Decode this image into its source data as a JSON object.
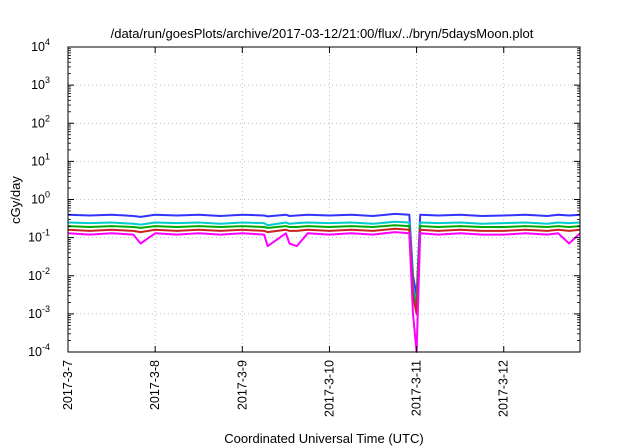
{
  "chart_data": {
    "type": "line",
    "title": "/data/run/goesPlots/archive/2017-03-12/21:00/flux/../bryn/5daysMoon.plot",
    "xlabel": "Coordinated Universal Time (UTC)",
    "ylabel": "cGy/day",
    "y_scale": "log",
    "ylim": [
      0.0001,
      10000
    ],
    "xlim": [
      "2017-03-07 00:00",
      "2017-03-12 21:00"
    ],
    "grid": true,
    "legend": "none",
    "y_ticks": [
      {
        "base": "10",
        "exp": "-4"
      },
      {
        "base": "10",
        "exp": "-3"
      },
      {
        "base": "10",
        "exp": "-2"
      },
      {
        "base": "10",
        "exp": "-1"
      },
      {
        "base": "10",
        "exp": "0"
      },
      {
        "base": "10",
        "exp": "1"
      },
      {
        "base": "10",
        "exp": "2"
      },
      {
        "base": "10",
        "exp": "3"
      },
      {
        "base": "10",
        "exp": "4"
      }
    ],
    "x_ticks": [
      "2017-3-7",
      "2017-3-8",
      "2017-3-9",
      "2017-3-10",
      "2017-3-11",
      "2017-3-12"
    ],
    "x": [
      "2017-03-07 00:00",
      "2017-03-07 06:00",
      "2017-03-07 12:00",
      "2017-03-07 18:00",
      "2017-03-07 20:00",
      "2017-03-08 00:00",
      "2017-03-08 06:00",
      "2017-03-08 12:00",
      "2017-03-08 18:00",
      "2017-03-09 00:00",
      "2017-03-09 06:00",
      "2017-03-09 07:00",
      "2017-03-09 12:00",
      "2017-03-09 13:00",
      "2017-03-09 15:00",
      "2017-03-09 18:00",
      "2017-03-10 00:00",
      "2017-03-10 06:00",
      "2017-03-10 12:00",
      "2017-03-10 18:00",
      "2017-03-10 22:00",
      "2017-03-10 23:00",
      "2017-03-11 00:00",
      "2017-03-11 01:00",
      "2017-03-11 06:00",
      "2017-03-11 12:00",
      "2017-03-11 18:00",
      "2017-03-12 00:00",
      "2017-03-12 06:00",
      "2017-03-12 12:00",
      "2017-03-12 15:00",
      "2017-03-12 18:00",
      "2017-03-12 21:00"
    ],
    "series": [
      {
        "color": "#3333ff",
        "values": [
          0.4,
          0.38,
          0.4,
          0.37,
          0.35,
          0.4,
          0.38,
          0.4,
          0.37,
          0.4,
          0.38,
          0.36,
          0.4,
          0.37,
          0.38,
          0.4,
          0.38,
          0.4,
          0.37,
          0.42,
          0.4,
          0.01,
          0.003,
          0.4,
          0.38,
          0.4,
          0.37,
          0.38,
          0.4,
          0.37,
          0.4,
          0.38,
          0.4
        ]
      },
      {
        "color": "#00cccc",
        "values": [
          0.25,
          0.24,
          0.25,
          0.23,
          0.22,
          0.25,
          0.24,
          0.25,
          0.23,
          0.25,
          0.24,
          0.21,
          0.25,
          0.23,
          0.24,
          0.25,
          0.24,
          0.25,
          0.23,
          0.26,
          0.25,
          0.005,
          0.002,
          0.25,
          0.24,
          0.25,
          0.23,
          0.24,
          0.25,
          0.23,
          0.25,
          0.24,
          0.25
        ]
      },
      {
        "color": "#00aa00",
        "values": [
          0.2,
          0.19,
          0.2,
          0.19,
          0.18,
          0.2,
          0.19,
          0.2,
          0.19,
          0.2,
          0.19,
          0.18,
          0.2,
          0.19,
          0.19,
          0.2,
          0.19,
          0.2,
          0.19,
          0.21,
          0.2,
          0.004,
          0.0015,
          0.2,
          0.19,
          0.2,
          0.19,
          0.19,
          0.2,
          0.19,
          0.2,
          0.19,
          0.2
        ]
      },
      {
        "color": "#cc2222",
        "values": [
          0.16,
          0.15,
          0.16,
          0.15,
          0.14,
          0.16,
          0.15,
          0.16,
          0.15,
          0.16,
          0.15,
          0.14,
          0.16,
          0.15,
          0.15,
          0.16,
          0.15,
          0.16,
          0.15,
          0.17,
          0.16,
          0.003,
          0.001,
          0.16,
          0.15,
          0.16,
          0.15,
          0.15,
          0.16,
          0.15,
          0.16,
          0.15,
          0.16
        ]
      },
      {
        "color": "#ff00ff",
        "values": [
          0.13,
          0.12,
          0.13,
          0.12,
          0.07,
          0.13,
          0.12,
          0.13,
          0.12,
          0.13,
          0.12,
          0.06,
          0.13,
          0.07,
          0.06,
          0.13,
          0.12,
          0.13,
          0.12,
          0.14,
          0.13,
          0.001,
          0.0001,
          0.13,
          0.12,
          0.13,
          0.12,
          0.12,
          0.13,
          0.12,
          0.13,
          0.07,
          0.13
        ]
      }
    ]
  }
}
